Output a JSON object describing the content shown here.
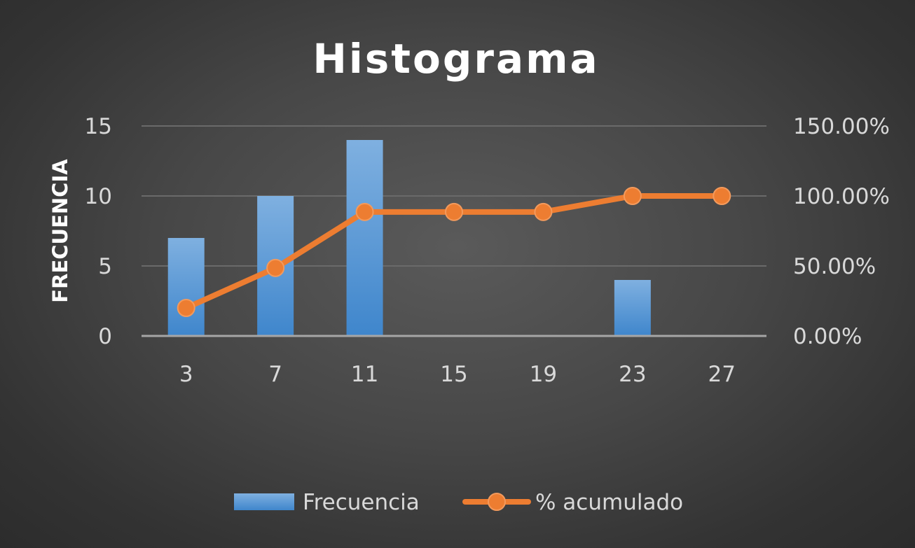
{
  "chart_data": {
    "type": "bar",
    "title": "Histograma",
    "ylabel": "FRECUENCIA",
    "categories": [
      "3",
      "7",
      "11",
      "15",
      "19",
      "23",
      "27"
    ],
    "series": [
      {
        "name": "Frecuencia",
        "type": "bar",
        "axis": "left",
        "values": [
          7,
          10,
          14,
          0,
          0,
          4,
          0
        ],
        "color": "#5b9bd5"
      },
      {
        "name": "% acumulado",
        "type": "line",
        "axis": "right",
        "values": [
          0.2,
          0.4857,
          0.8857,
          0.8857,
          0.8857,
          1.0,
          1.0
        ],
        "color": "#ed7d31"
      }
    ],
    "ylim": [
      0,
      15
    ],
    "y_ticks": [
      "0",
      "5",
      "10",
      "15"
    ],
    "y2lim": [
      0,
      1.5
    ],
    "y2_ticks": [
      "0.00%",
      "50.00%",
      "100.00%",
      "150.00%"
    ],
    "grid": true,
    "legend_position": "bottom"
  }
}
